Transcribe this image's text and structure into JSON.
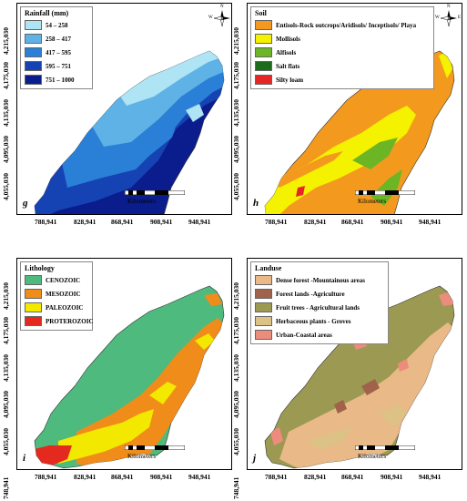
{
  "x_ticks": [
    "788,941",
    "828,941",
    "868,941",
    "908,941",
    "948,941"
  ],
  "y_ticks": [
    "748,941",
    "4,055,030",
    "4,095,030",
    "4,135,030",
    "4,175,030",
    "4,215,030"
  ],
  "scale": {
    "numbers": [
      "0",
      "10",
      "20",
      "40",
      "60"
    ],
    "unit": "Kilometers"
  },
  "compass": {
    "n": "N",
    "s": "S",
    "e": "E",
    "w": "W"
  },
  "panels": {
    "g": {
      "label": "g",
      "legend_title": "Rainfall (mm)",
      "items": [
        {
          "label": "54 – 258",
          "color": "#aee4f3"
        },
        {
          "label": "258 – 417",
          "color": "#5fb2e6"
        },
        {
          "label": "417 – 595",
          "color": "#2a7fd6"
        },
        {
          "label": "595 – 751",
          "color": "#1643b4"
        },
        {
          "label": "751 – 1000",
          "color": "#0b1c8c"
        }
      ]
    },
    "h": {
      "label": "h",
      "legend_title": "Soil",
      "items": [
        {
          "label": "Entisols-Rock outcrops/Aridisols/ Inceptisols/ Playa",
          "color": "#f39a1e"
        },
        {
          "label": "Mollisols",
          "color": "#f5f200"
        },
        {
          "label": "Alfisols",
          "color": "#6cb524"
        },
        {
          "label": "Salt flats",
          "color": "#1d6b1d"
        },
        {
          "label": "Silty loam",
          "color": "#e82525"
        }
      ]
    },
    "i": {
      "label": "i",
      "legend_title": "Lithology",
      "items": [
        {
          "label": "CENOZOIC",
          "color": "#4fba7d"
        },
        {
          "label": "MESOZOIC",
          "color": "#f08c1a"
        },
        {
          "label": "PALEOZOIC",
          "color": "#f2e800"
        },
        {
          "label": "PROTEROZOIC",
          "color": "#e42a1e"
        }
      ]
    },
    "j": {
      "label": "j",
      "legend_title": "Landuse",
      "items": [
        {
          "label": "Dense forest -Mountainous areas",
          "color": "#e9b987"
        },
        {
          "label": "Forest lands -Agriculture",
          "color": "#a0624a"
        },
        {
          "label": "Fruit trees - Agricultural lands",
          "color": "#9c9a52"
        },
        {
          "label": "Herbaceous plants - Groves",
          "color": "#dcc284"
        },
        {
          "label": "Urban-Coastal areas",
          "color": "#ed8c7c"
        }
      ]
    }
  }
}
